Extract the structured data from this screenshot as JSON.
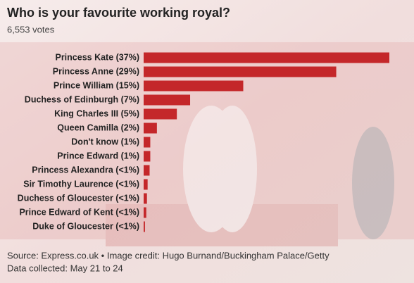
{
  "chart_data": {
    "type": "barh",
    "title": "Who is your favourite working royal?",
    "subtitle": "6,553 votes",
    "categories": [
      "Princess Kate (37%)",
      "Princess Anne (29%)",
      "Prince William (15%)",
      "Duchess of Edinburgh (7%)",
      "King Charles III (5%)",
      "Queen Camilla (2%)",
      "Don't know (1%)",
      "Prince Edward (1%)",
      "Princess Alexandra (<1%)",
      "Sir Timothy Laurence (<1%)",
      "Duchess of Gloucester (<1%)",
      "Prince Edward of Kent (<1%)",
      "Duke of Gloucester (<1%)"
    ],
    "values": [
      37,
      29,
      15,
      7,
      5,
      2,
      1,
      1,
      0.9,
      0.6,
      0.5,
      0.4,
      0.2
    ],
    "color": "#c4272a",
    "source": "Source: Express.co.uk • Image credit: Hugo Burnand/Buckingham Palace/Getty",
    "note": "Data collected: May 21 to 24"
  }
}
